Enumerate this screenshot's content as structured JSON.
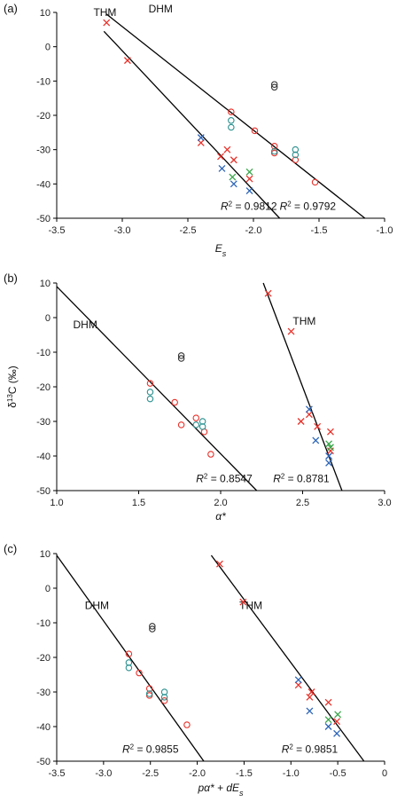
{
  "colors": {
    "red": "#e8312a",
    "blue": "#2a63b8",
    "green": "#3aa64a",
    "teal": "#2a8f8f",
    "black": "#333333"
  },
  "chart_data": [
    {
      "panel": "(a)",
      "type": "scatter",
      "xlabel": "E",
      "xlabel_sub": "s",
      "xlim": [
        -3.5,
        -1.0
      ],
      "ylim": [
        -50,
        10
      ],
      "xticks": [
        "-3.5",
        "-3.0",
        "-2.5",
        "-2.0",
        "-1.5",
        "-1.0"
      ],
      "yticks": [
        "10",
        "0",
        "-10",
        "-20",
        "-30",
        "-40",
        "-50"
      ],
      "points": [
        {
          "x": -3.12,
          "y": 7,
          "marker": "x",
          "color": "red"
        },
        {
          "x": -2.96,
          "y": -4,
          "marker": "x",
          "color": "red"
        },
        {
          "x": -2.4,
          "y": -28,
          "marker": "x",
          "color": "red"
        },
        {
          "x": -2.25,
          "y": -32,
          "marker": "x",
          "color": "red"
        },
        {
          "x": -2.2,
          "y": -30,
          "marker": "x",
          "color": "red"
        },
        {
          "x": -2.15,
          "y": -33,
          "marker": "x",
          "color": "red"
        },
        {
          "x": -2.03,
          "y": -38.5,
          "marker": "x",
          "color": "red"
        },
        {
          "x": -2.4,
          "y": -26.5,
          "marker": "x",
          "color": "blue"
        },
        {
          "x": -2.24,
          "y": -35.5,
          "marker": "x",
          "color": "blue"
        },
        {
          "x": -2.15,
          "y": -40,
          "marker": "x",
          "color": "blue"
        },
        {
          "x": -2.03,
          "y": -42,
          "marker": "x",
          "color": "blue"
        },
        {
          "x": -2.16,
          "y": -38,
          "marker": "x",
          "color": "green"
        },
        {
          "x": -2.03,
          "y": -36.5,
          "marker": "x",
          "color": "green"
        },
        {
          "x": -2.17,
          "y": -19,
          "marker": "o",
          "color": "red"
        },
        {
          "x": -1.99,
          "y": -24.5,
          "marker": "o",
          "color": "red"
        },
        {
          "x": -1.84,
          "y": -29,
          "marker": "o",
          "color": "red"
        },
        {
          "x": -1.84,
          "y": -31,
          "marker": "o",
          "color": "red"
        },
        {
          "x": -1.68,
          "y": -33,
          "marker": "o",
          "color": "red"
        },
        {
          "x": -1.53,
          "y": -39.5,
          "marker": "o",
          "color": "red"
        },
        {
          "x": -2.17,
          "y": -21.5,
          "marker": "o",
          "color": "teal"
        },
        {
          "x": -2.17,
          "y": -23.5,
          "marker": "o",
          "color": "teal"
        },
        {
          "x": -1.84,
          "y": -30.5,
          "marker": "o",
          "color": "teal"
        },
        {
          "x": -1.68,
          "y": -30,
          "marker": "o",
          "color": "teal"
        },
        {
          "x": -1.68,
          "y": -31.5,
          "marker": "o",
          "color": "teal"
        },
        {
          "x": -1.84,
          "y": -11,
          "marker": "o",
          "color": "black"
        },
        {
          "x": -1.84,
          "y": -11.8,
          "marker": "o",
          "color": "black"
        }
      ],
      "lines": [
        {
          "name": "THM",
          "x1": -3.14,
          "y1": 4.5,
          "x2": -1.8,
          "y2": -50
        },
        {
          "name": "DHM",
          "x1": -3.12,
          "y1": 9.5,
          "x2": -1.15,
          "y2": -50
        }
      ],
      "line_labels": [
        {
          "text": "THM",
          "x": -3.22,
          "y": 10
        },
        {
          "text": "DHM",
          "x": -2.8,
          "y": 11
        }
      ],
      "r2_labels": [
        {
          "value": "0.9812",
          "x": -2.25,
          "y": -47.5
        },
        {
          "value": "0.9792",
          "x": -1.8,
          "y": -47.5
        }
      ]
    },
    {
      "panel": "(b)",
      "type": "scatter",
      "xlabel": "α*",
      "ylabel": "δ13C (‰)",
      "xlim": [
        1.0,
        3.0
      ],
      "ylim": [
        -50,
        10
      ],
      "xticks": [
        "1.0",
        "1.5",
        "2.0",
        "2.5",
        "3.0"
      ],
      "yticks": [
        "10",
        "0",
        "-10",
        "-20",
        "-30",
        "-40",
        "-50"
      ],
      "points": [
        {
          "x": 2.29,
          "y": 7,
          "marker": "x",
          "color": "red"
        },
        {
          "x": 2.43,
          "y": -4,
          "marker": "x",
          "color": "red"
        },
        {
          "x": 2.49,
          "y": -30,
          "marker": "x",
          "color": "red"
        },
        {
          "x": 2.54,
          "y": -28,
          "marker": "x",
          "color": "red"
        },
        {
          "x": 2.59,
          "y": -31.5,
          "marker": "x",
          "color": "red"
        },
        {
          "x": 2.67,
          "y": -33,
          "marker": "x",
          "color": "red"
        },
        {
          "x": 2.67,
          "y": -38.5,
          "marker": "x",
          "color": "red"
        },
        {
          "x": 2.54,
          "y": -26.5,
          "marker": "x",
          "color": "blue"
        },
        {
          "x": 2.58,
          "y": -35.5,
          "marker": "x",
          "color": "blue"
        },
        {
          "x": 2.66,
          "y": -40,
          "marker": "x",
          "color": "blue"
        },
        {
          "x": 2.66,
          "y": -42,
          "marker": "x",
          "color": "blue"
        },
        {
          "x": 2.66,
          "y": -36.5,
          "marker": "x",
          "color": "green"
        },
        {
          "x": 2.67,
          "y": -37.5,
          "marker": "x",
          "color": "green"
        },
        {
          "x": 1.57,
          "y": -19,
          "marker": "o",
          "color": "red"
        },
        {
          "x": 1.72,
          "y": -24.5,
          "marker": "o",
          "color": "red"
        },
        {
          "x": 1.76,
          "y": -31,
          "marker": "o",
          "color": "red"
        },
        {
          "x": 1.85,
          "y": -29,
          "marker": "o",
          "color": "red"
        },
        {
          "x": 1.9,
          "y": -33,
          "marker": "o",
          "color": "red"
        },
        {
          "x": 1.94,
          "y": -39.5,
          "marker": "o",
          "color": "red"
        },
        {
          "x": 1.57,
          "y": -21.5,
          "marker": "o",
          "color": "teal"
        },
        {
          "x": 1.57,
          "y": -23.5,
          "marker": "o",
          "color": "teal"
        },
        {
          "x": 1.85,
          "y": -31,
          "marker": "o",
          "color": "teal"
        },
        {
          "x": 1.89,
          "y": -30,
          "marker": "o",
          "color": "teal"
        },
        {
          "x": 1.89,
          "y": -31.5,
          "marker": "o",
          "color": "teal"
        },
        {
          "x": 1.76,
          "y": -11,
          "marker": "o",
          "color": "black"
        },
        {
          "x": 1.76,
          "y": -11.8,
          "marker": "o",
          "color": "black"
        }
      ],
      "lines": [
        {
          "name": "DHM",
          "x1": 1.0,
          "y1": 9,
          "x2": 2.22,
          "y2": -50
        },
        {
          "name": "THM",
          "x1": 2.26,
          "y1": 10,
          "x2": 2.74,
          "y2": -50
        }
      ],
      "line_labels": [
        {
          "text": "DHM",
          "x": 1.1,
          "y": -2
        },
        {
          "text": "THM",
          "x": 2.44,
          "y": -1
        }
      ],
      "r2_labels": [
        {
          "value": "0.8547",
          "x": 1.85,
          "y": -47.5
        },
        {
          "value": "0.8781",
          "x": 2.32,
          "y": -47.5
        }
      ]
    },
    {
      "panel": "(c)",
      "type": "scatter",
      "xlabel": "pα* + dE",
      "xlabel_sub": "s",
      "xlim": [
        -3.5,
        0
      ],
      "ylim": [
        -50,
        10
      ],
      "xticks": [
        "-3.5",
        "-3.0",
        "-2.5",
        "-2.0",
        "-1.5",
        "-1.0",
        "-0.5",
        "0"
      ],
      "yticks": [
        "10",
        "0",
        "-10",
        "-20",
        "-30",
        "-40",
        "-50"
      ],
      "points": [
        {
          "x": -1.76,
          "y": 7,
          "marker": "x",
          "color": "red"
        },
        {
          "x": -1.51,
          "y": -4,
          "marker": "x",
          "color": "red"
        },
        {
          "x": -0.92,
          "y": -28,
          "marker": "x",
          "color": "red"
        },
        {
          "x": -0.8,
          "y": -31.5,
          "marker": "x",
          "color": "red"
        },
        {
          "x": -0.78,
          "y": -30,
          "marker": "x",
          "color": "red"
        },
        {
          "x": -0.6,
          "y": -33,
          "marker": "x",
          "color": "red"
        },
        {
          "x": -0.51,
          "y": -38.5,
          "marker": "x",
          "color": "red"
        },
        {
          "x": -0.92,
          "y": -26.5,
          "marker": "x",
          "color": "blue"
        },
        {
          "x": -0.8,
          "y": -35.5,
          "marker": "x",
          "color": "blue"
        },
        {
          "x": -0.6,
          "y": -40,
          "marker": "x",
          "color": "blue"
        },
        {
          "x": -0.51,
          "y": -42,
          "marker": "x",
          "color": "blue"
        },
        {
          "x": -0.6,
          "y": -38,
          "marker": "x",
          "color": "green"
        },
        {
          "x": -0.5,
          "y": -36.5,
          "marker": "x",
          "color": "green"
        },
        {
          "x": -2.73,
          "y": -19,
          "marker": "o",
          "color": "red"
        },
        {
          "x": -2.62,
          "y": -24.5,
          "marker": "o",
          "color": "red"
        },
        {
          "x": -2.51,
          "y": -29,
          "marker": "o",
          "color": "red"
        },
        {
          "x": -2.51,
          "y": -31,
          "marker": "o",
          "color": "red"
        },
        {
          "x": -2.35,
          "y": -32.5,
          "marker": "o",
          "color": "red"
        },
        {
          "x": -2.11,
          "y": -39.5,
          "marker": "o",
          "color": "red"
        },
        {
          "x": -2.73,
          "y": -21.5,
          "marker": "o",
          "color": "teal"
        },
        {
          "x": -2.73,
          "y": -23,
          "marker": "o",
          "color": "teal"
        },
        {
          "x": -2.51,
          "y": -30.5,
          "marker": "o",
          "color": "teal"
        },
        {
          "x": -2.35,
          "y": -30,
          "marker": "o",
          "color": "teal"
        },
        {
          "x": -2.35,
          "y": -31.5,
          "marker": "o",
          "color": "teal"
        },
        {
          "x": -2.48,
          "y": -11,
          "marker": "o",
          "color": "black"
        },
        {
          "x": -2.48,
          "y": -11.8,
          "marker": "o",
          "color": "black"
        }
      ],
      "lines": [
        {
          "name": "DHM",
          "x1": -3.5,
          "y1": 9.5,
          "x2": -1.93,
          "y2": -50
        },
        {
          "name": "THM",
          "x1": -1.85,
          "y1": 9.5,
          "x2": -0.22,
          "y2": -50
        }
      ],
      "line_labels": [
        {
          "text": "DHM",
          "x": -3.2,
          "y": -5
        },
        {
          "text": "THM",
          "x": -1.55,
          "y": -5
        }
      ],
      "r2_labels": [
        {
          "value": "0.9855",
          "x": -2.8,
          "y": -47.5
        },
        {
          "value": "0.9851",
          "x": -1.1,
          "y": -47.5
        }
      ]
    }
  ]
}
